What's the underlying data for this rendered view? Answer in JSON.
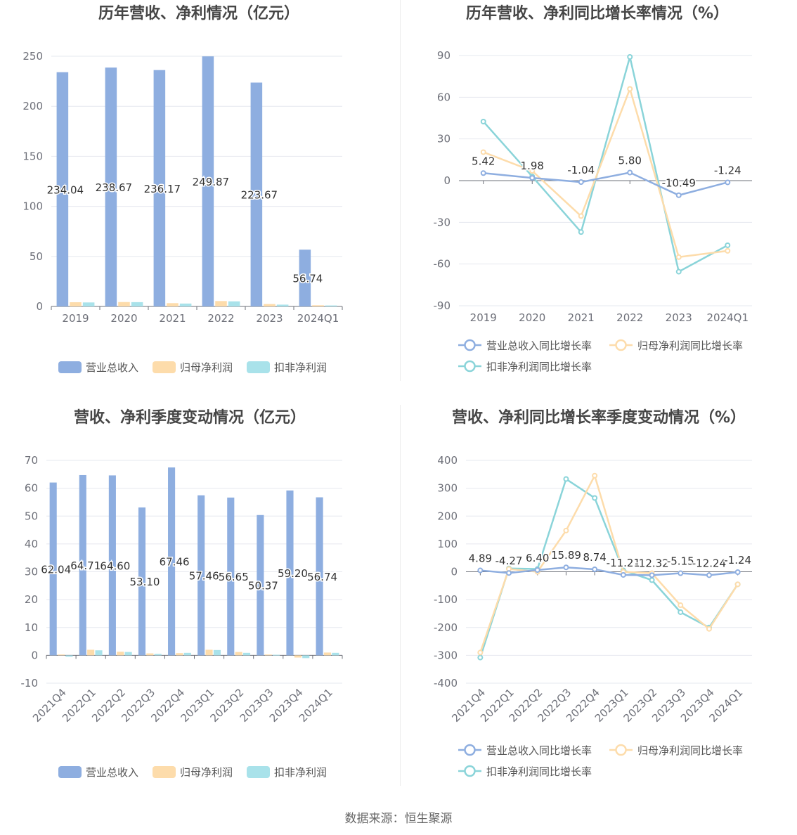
{
  "footer": {
    "source": "数据来源：恒生聚源"
  },
  "colors": {
    "revenue": "#8eaee0",
    "net": "#fddcab",
    "deducted": "#a9e2ea"
  },
  "chart_data": [
    {
      "id": "annual-bar",
      "type": "bar",
      "title": "历年营收、净利情况（亿元）",
      "categories": [
        "2019",
        "2020",
        "2021",
        "2022",
        "2023",
        "2024Q1"
      ],
      "ylim": [
        0,
        250
      ],
      "yticks": [
        0,
        50,
        100,
        150,
        200,
        250
      ],
      "series": [
        {
          "name": "营业总收入",
          "color": "#8eaee0",
          "values": [
            234.04,
            238.67,
            236.17,
            249.87,
            223.67,
            56.74
          ],
          "labels": [
            "234.04",
            "238.67",
            "236.17",
            "249.87",
            "223.67",
            "56.74"
          ]
        },
        {
          "name": "归母净利润",
          "color": "#fddcab",
          "values": [
            4.2,
            4.4,
            3.3,
            5.4,
            2.4,
            1.2
          ]
        },
        {
          "name": "扣非净利润",
          "color": "#a9e2ea",
          "values": [
            4.0,
            4.3,
            2.9,
            5.1,
            1.8,
            1.0
          ]
        }
      ],
      "legend_position": "bottom"
    },
    {
      "id": "annual-line",
      "type": "line",
      "title": "历年营收、净利同比增长率情况（%）",
      "categories": [
        "2019",
        "2020",
        "2021",
        "2022",
        "2023",
        "2024Q1"
      ],
      "ylim": [
        -90,
        90
      ],
      "yticks": [
        -90,
        -60,
        -30,
        0,
        30,
        60,
        90
      ],
      "series": [
        {
          "name": "营业总收入同比增长率",
          "color": "#8eaee0",
          "values": [
            5.42,
            1.98,
            -1.04,
            5.8,
            -10.49,
            -1.24
          ],
          "labels": [
            "5.42",
            "1.98",
            "-1.04",
            "5.80",
            "-10.49",
            "-1.24"
          ]
        },
        {
          "name": "归母净利润同比增长率",
          "color": "#fddcab",
          "values": [
            20.5,
            7.0,
            -25.5,
            66.0,
            -55.0,
            -50.5
          ]
        },
        {
          "name": "扣非净利润同比增长率",
          "color": "#8ad4d9",
          "values": [
            42.5,
            3.0,
            -37.0,
            89.0,
            -65.5,
            -46.5
          ]
        }
      ],
      "legend_position": "bottom"
    },
    {
      "id": "quarterly-bar",
      "type": "bar",
      "title": "营收、净利季度变动情况（亿元）",
      "categories": [
        "2021Q4",
        "2022Q1",
        "2022Q2",
        "2022Q3",
        "2022Q4",
        "2023Q1",
        "2023Q2",
        "2023Q3",
        "2023Q4",
        "2024Q1"
      ],
      "ylim": [
        -10,
        70
      ],
      "yticks": [
        -10,
        0,
        10,
        20,
        30,
        40,
        50,
        60,
        70
      ],
      "series": [
        {
          "name": "营业总收入",
          "color": "#8eaee0",
          "values": [
            62.04,
            64.71,
            64.6,
            53.1,
            67.46,
            57.46,
            56.65,
            50.37,
            59.2,
            56.74
          ],
          "labels": [
            "62.04",
            "64.71",
            "64.60",
            "53.10",
            "67.46",
            "57.46",
            "56.65",
            "50.37",
            "59.20",
            "56.74"
          ]
        },
        {
          "name": "归母净利润",
          "color": "#fddcab",
          "values": [
            0.3,
            2.0,
            1.3,
            0.7,
            0.8,
            2.0,
            1.2,
            0.3,
            -0.8,
            1.0
          ]
        },
        {
          "name": "扣非净利润",
          "color": "#a9e2ea",
          "values": [
            -0.5,
            1.8,
            1.2,
            0.5,
            0.9,
            1.9,
            0.9,
            0.2,
            -1.0,
            0.9
          ]
        }
      ],
      "legend_position": "bottom"
    },
    {
      "id": "quarterly-line",
      "type": "line",
      "title": "营收、净利同比增长率季度变动情况（%）",
      "categories": [
        "2021Q4",
        "2022Q1",
        "2022Q2",
        "2022Q3",
        "2022Q4",
        "2023Q1",
        "2023Q2",
        "2023Q3",
        "2023Q4",
        "2024Q1"
      ],
      "ylim": [
        -400,
        400
      ],
      "yticks": [
        -400,
        -300,
        -200,
        -100,
        0,
        100,
        200,
        300,
        400
      ],
      "series": [
        {
          "name": "营业总收入同比增长率",
          "color": "#8eaee0",
          "values": [
            4.89,
            -4.27,
            6.4,
            15.89,
            8.74,
            -11.21,
            -12.32,
            -5.15,
            -12.24,
            -1.24
          ],
          "labels": [
            "4.89",
            "-4.27",
            "6.40",
            "15.89",
            "8.74",
            "-11.21",
            "-12.32",
            "-5.15",
            "-12.24",
            "-1.24"
          ]
        },
        {
          "name": "归母净利润同比增长率",
          "color": "#fddcab",
          "values": [
            -290,
            10,
            0,
            148,
            345,
            0,
            -5,
            -120,
            -205,
            -45
          ]
        },
        {
          "name": "扣非净利润同比增长率",
          "color": "#8ad4d9",
          "values": [
            -308,
            12,
            10,
            333,
            265,
            5,
            -30,
            -145,
            -200,
            -45
          ]
        }
      ],
      "legend_position": "bottom"
    }
  ]
}
